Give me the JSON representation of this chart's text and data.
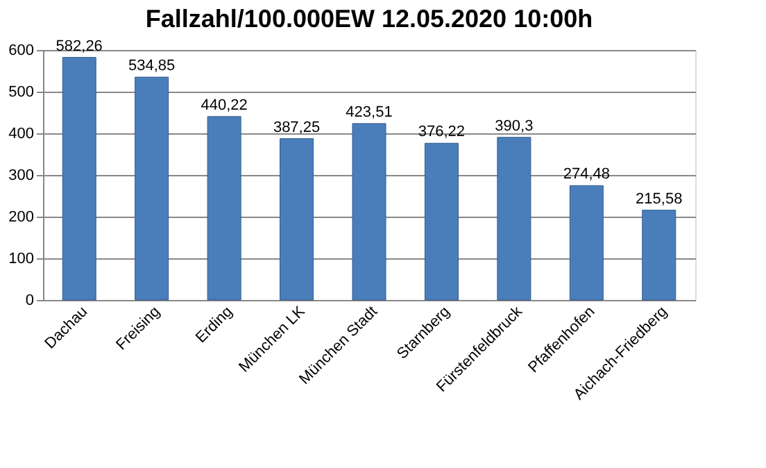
{
  "chart_data": {
    "type": "bar",
    "title": "Fallzahl/100.000EW 12.05.2020  10:00h",
    "categories": [
      "Dachau",
      "Freising",
      "Erding",
      "München LK",
      "München Stadt",
      "Starnberg",
      "Fürstenfeldbruck",
      "Pfaffenhofen",
      "Aichach-Friedberg"
    ],
    "values": [
      582.26,
      534.85,
      440.22,
      387.25,
      423.51,
      376.22,
      390.3,
      274.48,
      215.58
    ],
    "value_labels": [
      "582,26",
      "534,85",
      "440,22",
      "387,25",
      "423,51",
      "376,22",
      "390,3",
      "274,48",
      "215,58"
    ],
    "color": "#4a7ebb",
    "ylim": [
      0,
      600
    ],
    "yticks": [
      0,
      100,
      200,
      300,
      400,
      500,
      600
    ],
    "grid": "y"
  }
}
